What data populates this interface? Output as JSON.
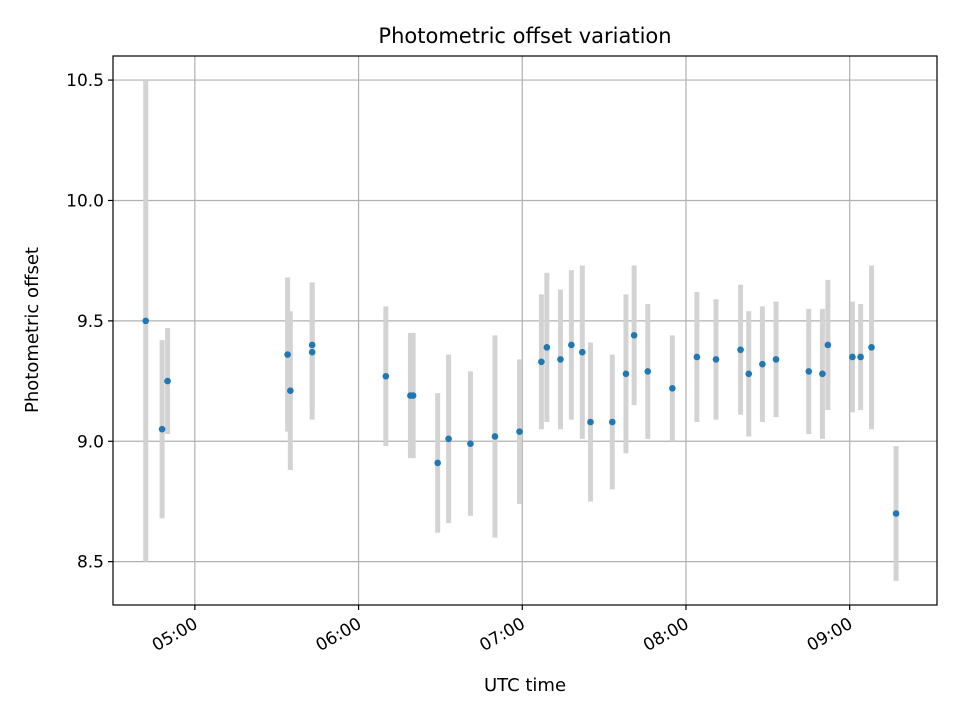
{
  "chart_data": {
    "type": "scatter",
    "title": "Photometric offset variation",
    "xlabel": "UTC time",
    "ylabel": "Photometric offset",
    "x_axis_type": "time",
    "xlim": [
      "04:30",
      "09:32"
    ],
    "ylim": [
      8.32,
      10.6
    ],
    "grid": true,
    "x_ticks": [
      "05:00",
      "06:00",
      "07:00",
      "08:00",
      "09:00"
    ],
    "y_ticks": [
      "8.5",
      "9.0",
      "9.5",
      "10.0",
      "10.5"
    ],
    "colors": {
      "point": "#1f77b4",
      "errorbar": "#d3d3d3",
      "grid": "#b0b0b0"
    },
    "series": [
      {
        "points": [
          {
            "x": "04:42",
            "y": 9.5,
            "err": 1.0
          },
          {
            "x": "04:48",
            "y": 9.05,
            "err": 0.37
          },
          {
            "x": "04:50",
            "y": 9.25,
            "err": 0.22
          },
          {
            "x": "05:34",
            "y": 9.36,
            "err": 0.32
          },
          {
            "x": "05:35",
            "y": 9.21,
            "err": 0.33
          },
          {
            "x": "05:43",
            "y": 9.4,
            "err": 0.26
          },
          {
            "x": "05:43",
            "y": 9.37,
            "err": 0.28
          },
          {
            "x": "06:10",
            "y": 9.27,
            "err": 0.29
          },
          {
            "x": "06:19",
            "y": 9.19,
            "err": 0.26
          },
          {
            "x": "06:20",
            "y": 9.19,
            "err": 0.26
          },
          {
            "x": "06:29",
            "y": 8.91,
            "err": 0.29
          },
          {
            "x": "06:33",
            "y": 9.01,
            "err": 0.35
          },
          {
            "x": "06:41",
            "y": 8.99,
            "err": 0.3
          },
          {
            "x": "06:50",
            "y": 9.02,
            "err": 0.42
          },
          {
            "x": "06:59",
            "y": 9.04,
            "err": 0.3
          },
          {
            "x": "07:07",
            "y": 9.33,
            "err": 0.28
          },
          {
            "x": "07:09",
            "y": 9.39,
            "err": 0.31
          },
          {
            "x": "07:14",
            "y": 9.34,
            "err": 0.29
          },
          {
            "x": "07:18",
            "y": 9.4,
            "err": 0.31
          },
          {
            "x": "07:22",
            "y": 9.37,
            "err": 0.36
          },
          {
            "x": "07:25",
            "y": 9.08,
            "err": 0.33
          },
          {
            "x": "07:33",
            "y": 9.08,
            "err": 0.28
          },
          {
            "x": "07:38",
            "y": 9.28,
            "err": 0.33
          },
          {
            "x": "07:41",
            "y": 9.44,
            "err": 0.29
          },
          {
            "x": "07:46",
            "y": 9.29,
            "err": 0.28
          },
          {
            "x": "07:55",
            "y": 9.22,
            "err": 0.22
          },
          {
            "x": "08:04",
            "y": 9.35,
            "err": 0.27
          },
          {
            "x": "08:11",
            "y": 9.34,
            "err": 0.25
          },
          {
            "x": "08:20",
            "y": 9.38,
            "err": 0.27
          },
          {
            "x": "08:23",
            "y": 9.28,
            "err": 0.26
          },
          {
            "x": "08:28",
            "y": 9.32,
            "err": 0.24
          },
          {
            "x": "08:33",
            "y": 9.34,
            "err": 0.24
          },
          {
            "x": "08:45",
            "y": 9.29,
            "err": 0.26
          },
          {
            "x": "08:50",
            "y": 9.28,
            "err": 0.27
          },
          {
            "x": "08:52",
            "y": 9.4,
            "err": 0.27
          },
          {
            "x": "09:01",
            "y": 9.35,
            "err": 0.23
          },
          {
            "x": "09:04",
            "y": 9.35,
            "err": 0.22
          },
          {
            "x": "09:08",
            "y": 9.39,
            "err": 0.34
          },
          {
            "x": "09:17",
            "y": 8.7,
            "err": 0.28
          }
        ]
      }
    ]
  }
}
